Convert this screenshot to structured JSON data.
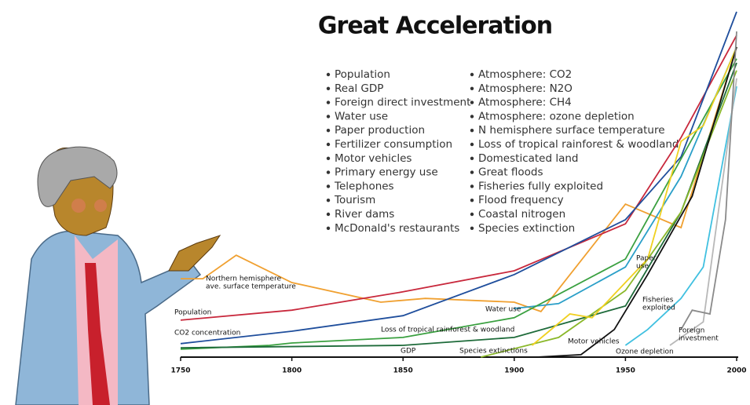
{
  "chart_data": {
    "type": "line",
    "title": "Great Acceleration",
    "list_left": [
      "Population",
      "Real GDP",
      "Foreign direct investment",
      "Water use",
      "Paper production",
      "Fertilizer consumption",
      "Motor vehicles",
      "Primary energy use",
      "Telephones",
      "Tourism",
      "River dams",
      "McDonald's restaurants"
    ],
    "list_right": [
      "Atmosphere: CO2",
      "Atmosphere: N2O",
      "Atmosphere: CH4",
      "Atmosphere: ozone depletion",
      "N hemisphere surface temperature",
      "Loss of tropical rainforest & woodland",
      "Domesticated land",
      "Great floods",
      "Fisheries fully exploited",
      "Flood frequency",
      "Coastal nitrogen",
      "Species extinction"
    ],
    "xlim": [
      1750,
      2000
    ],
    "xticks": [
      1750,
      1800,
      1850,
      1900,
      1950,
      2000
    ],
    "ylim": [
      0,
      100
    ],
    "series": [
      {
        "name_lines": [
          "Northern hemisphere",
          "ave. surface temperature"
        ],
        "color": "#f0a030",
        "x": [
          1750,
          1760,
          1775,
          1800,
          1840,
          1860,
          1900,
          1912,
          1950,
          1975,
          2000
        ],
        "values": [
          22.7,
          22.7,
          29.5,
          21.6,
          15.9,
          17,
          15.9,
          13.2,
          44.3,
          37.5,
          89.8
        ]
      },
      {
        "name_lines": [
          "Population"
        ],
        "color": "#c8283c",
        "x": [
          1750,
          1800,
          1850,
          1900,
          1950,
          1975,
          2000
        ],
        "values": [
          10.7,
          13.6,
          18.9,
          25,
          38.6,
          63.6,
          93.2
        ]
      },
      {
        "name_lines": [
          "CO2 concentration"
        ],
        "color": "#1f4e9c",
        "x": [
          1750,
          1800,
          1850,
          1900,
          1950,
          1975,
          2000
        ],
        "values": [
          3.9,
          7.5,
          12,
          23.9,
          39.8,
          58,
          100
        ]
      },
      {
        "name_lines": [
          "Water use"
        ],
        "color": "#2a9fc8",
        "x": [
          1900,
          1920,
          1950,
          1975,
          2000
        ],
        "values": [
          14.1,
          15.5,
          26.1,
          52.3,
          89.8
        ]
      },
      {
        "name_lines": [
          "Loss of tropical rainforest & woodland"
        ],
        "color": "#3aa040",
        "x": [
          1750,
          1790,
          1800,
          1850,
          1900,
          1950,
          2000
        ],
        "values": [
          2.3,
          3.4,
          4.1,
          5.7,
          11.4,
          28.4,
          86.4
        ]
      },
      {
        "name_lines": [
          "GDP"
        ],
        "color": "#1e6b3a",
        "x": [
          1750,
          1850,
          1900,
          1950,
          1975,
          2000
        ],
        "values": [
          2.7,
          3.4,
          5.7,
          14.8,
          42,
          85.2
        ]
      },
      {
        "name_lines": [
          "Species extinctions"
        ],
        "color": "#8ab82a",
        "x": [
          1885,
          1920,
          1950,
          1975,
          2000
        ],
        "values": [
          0,
          5.7,
          19.3,
          42,
          83
        ]
      },
      {
        "name_lines": [
          "Paper",
          "use"
        ],
        "color": "#f0d020",
        "x": [
          1908,
          1925,
          1935,
          1945,
          1960,
          1975,
          1985,
          2000
        ],
        "values": [
          3.4,
          12.5,
          11.4,
          18.2,
          28.4,
          62.5,
          67,
          89.8
        ]
      },
      {
        "name_lines": [
          "Motor vehicles"
        ],
        "color": "#111111",
        "x": [
          1910,
          1930,
          1945,
          1960,
          1980,
          2000
        ],
        "values": [
          0,
          0.7,
          8,
          23.9,
          46.6,
          89.8
        ]
      },
      {
        "name_lines": [
          "Fisheries",
          "exploited"
        ],
        "color": "#40c0e0",
        "x": [
          1950,
          1960,
          1975,
          1985,
          2000
        ],
        "values": [
          3.4,
          8,
          17,
          26.1,
          78.4
        ]
      },
      {
        "name_lines": [
          "Ozone depletion"
        ],
        "color": "#b8b8b8",
        "x": [
          1970,
          1985,
          2000
        ],
        "values": [
          3.4,
          10.2,
          80.7
        ]
      },
      {
        "name_lines": [
          "Foreign",
          "investment"
        ],
        "color": "#8a8a8a",
        "x": [
          1975,
          1980,
          1988,
          1995,
          2000
        ],
        "values": [
          8,
          13.6,
          12.5,
          39.8,
          94.3
        ]
      }
    ]
  }
}
